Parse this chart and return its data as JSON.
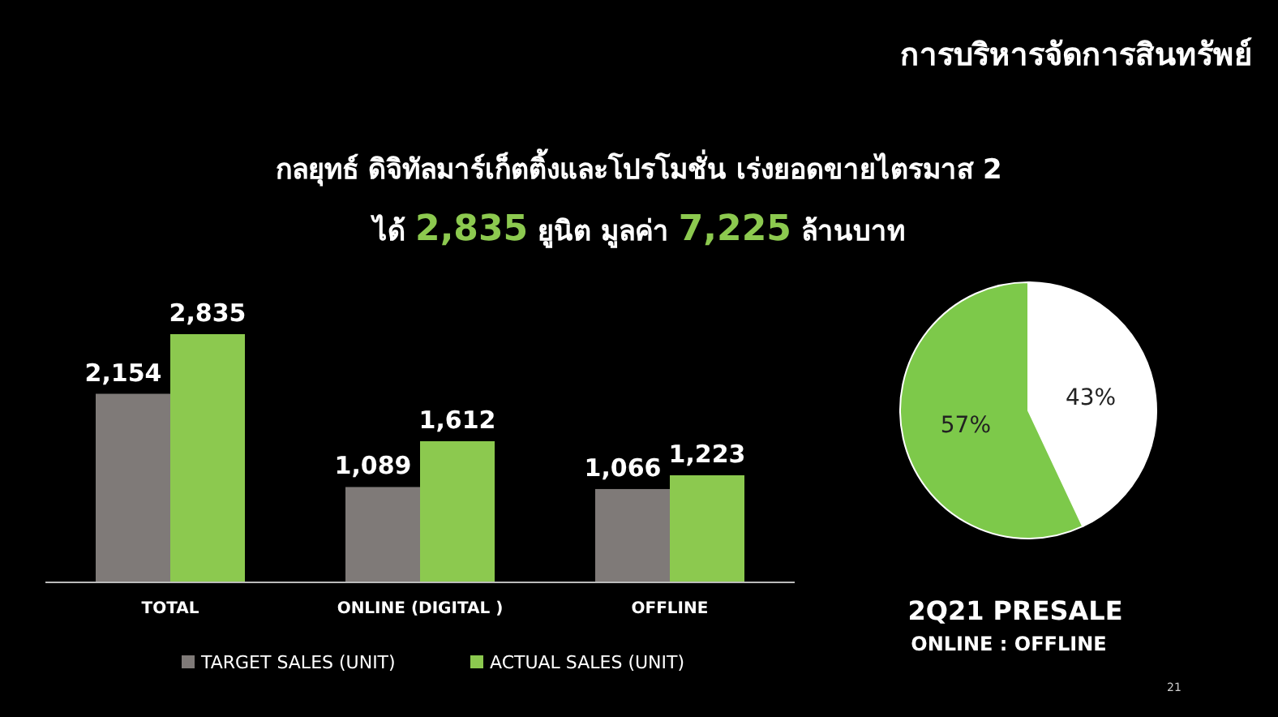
{
  "chart_data": [
    {
      "type": "bar",
      "subtitle": "กลยุทธ์ ดิจิทัลมาร์เก็ตติ้งและโปรโมชั่น เร่งยอดขายไตรมาส 2",
      "annotations": [
        "ได้ 2,835 ยูนิต มูลค่า 7,225 ล้านบาท"
      ],
      "categories": [
        "TOTAL",
        "ONLINE (DIGITAL )",
        "OFFLINE"
      ],
      "series": [
        {
          "name": "TARGET SALES (UNIT)",
          "color": "#7f7a78",
          "values": [
            2154,
            1089,
            1066
          ],
          "value_labels": [
            "2,154",
            "1,089",
            "1,066"
          ]
        },
        {
          "name": "ACTUAL  SALES (UNIT)",
          "color": "#8cc94f",
          "values": [
            2835,
            1612,
            1223
          ],
          "value_labels": [
            "2,835",
            "1,612",
            "1,223"
          ]
        }
      ],
      "legend": "bottom"
    },
    {
      "type": "pie",
      "title": "การบริหารจัดการสินทรัพย์",
      "annotations": [
        "2Q21 PRESALE",
        "ONLINE : OFFLINE",
        "21"
      ],
      "categories": [
        null,
        null
      ],
      "values": [
        43,
        57
      ],
      "colors": [
        "#ffffff",
        "#7dc94a"
      ],
      "value_labels": [
        "43%",
        "57%"
      ]
    }
  ]
}
